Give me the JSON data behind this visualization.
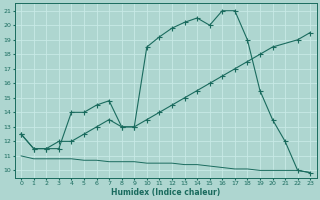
{
  "xlabel": "Humidex (Indice chaleur)",
  "bg_color": "#aed6d0",
  "grid_color": "#c8eae6",
  "line_color": "#1a6b5e",
  "xlim": [
    -0.5,
    23.5
  ],
  "ylim": [
    9.5,
    21.5
  ],
  "xticks": [
    0,
    1,
    2,
    3,
    4,
    5,
    6,
    7,
    8,
    9,
    10,
    11,
    12,
    13,
    14,
    15,
    16,
    17,
    18,
    19,
    20,
    21,
    22,
    23
  ],
  "yticks": [
    10,
    11,
    12,
    13,
    14,
    15,
    16,
    17,
    18,
    19,
    20,
    21
  ],
  "line1_x": [
    0,
    1,
    2,
    3,
    4,
    5,
    6,
    7,
    8,
    9,
    10,
    11,
    12,
    13,
    14,
    15,
    16,
    17,
    18,
    19,
    20,
    21,
    22,
    23
  ],
  "line1_y": [
    11.0,
    10.8,
    10.8,
    10.8,
    10.8,
    10.7,
    10.7,
    10.6,
    10.6,
    10.6,
    10.5,
    10.5,
    10.5,
    10.4,
    10.4,
    10.3,
    10.2,
    10.1,
    10.1,
    10.0,
    10.0,
    10.0,
    10.0,
    9.85
  ],
  "line2_x": [
    0,
    1,
    2,
    3,
    4,
    5,
    6,
    7,
    8,
    9,
    10,
    11,
    12,
    13,
    14,
    15,
    16,
    17,
    18,
    19,
    20,
    22,
    23
  ],
  "line2_y": [
    12.5,
    11.5,
    11.5,
    12.0,
    12.0,
    12.5,
    13.0,
    13.5,
    13.0,
    13.0,
    13.5,
    14.0,
    14.5,
    15.0,
    15.5,
    16.0,
    16.5,
    17.0,
    17.5,
    18.0,
    18.5,
    19.0,
    19.5
  ],
  "line3_x": [
    0,
    1,
    2,
    3,
    4,
    5,
    6,
    7,
    8,
    9,
    10,
    11,
    12,
    13,
    14,
    15,
    16,
    17,
    18,
    19,
    20,
    21,
    22,
    23
  ],
  "line3_y": [
    12.5,
    11.5,
    11.5,
    11.5,
    14.0,
    14.0,
    14.5,
    14.8,
    13.0,
    13.0,
    18.5,
    19.2,
    19.8,
    20.2,
    20.5,
    20.0,
    21.0,
    21.0,
    19.0,
    15.5,
    13.5,
    12.0,
    10.0,
    9.85
  ]
}
